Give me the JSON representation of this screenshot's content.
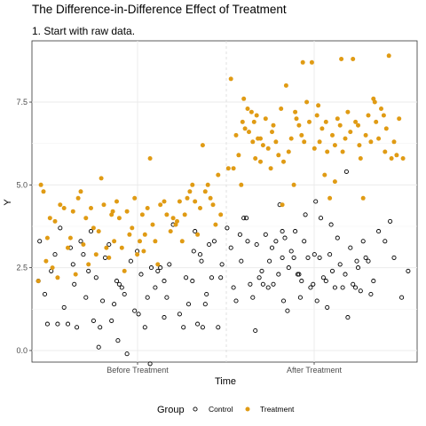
{
  "title": "The Difference-in-Difference Effect of Treatment",
  "subtitle": "1. Start with raw data.",
  "chart_data": {
    "type": "scatter",
    "xlabel": "Time",
    "ylabel": "Y",
    "x_categories": [
      "Before Treatment",
      "After Treatment"
    ],
    "y_ticks": [
      0.0,
      2.5,
      5.0,
      7.5
    ],
    "y_tick_labels": [
      "0.0",
      "2.5",
      "5.0",
      "7.5"
    ],
    "ylim": [
      -0.35,
      9.35
    ],
    "grid": true,
    "legend": {
      "title": "Group",
      "position": "bottom"
    },
    "series": [
      {
        "name": "Control",
        "color": "#000000",
        "marker": "hollow-circle",
        "points": [
          [
            0.05,
            2.1
          ],
          [
            0.1,
            1.7
          ],
          [
            0.12,
            0.8
          ],
          [
            0.06,
            3.3
          ],
          [
            0.15,
            2.4
          ],
          [
            0.18,
            2.9
          ],
          [
            0.2,
            0.8
          ],
          [
            0.22,
            3.7
          ],
          [
            0.25,
            1.3
          ],
          [
            0.28,
            0.8
          ],
          [
            0.3,
            3.1
          ],
          [
            0.32,
            2.6
          ],
          [
            0.33,
            2.0
          ],
          [
            0.35,
            0.7
          ],
          [
            0.38,
            3.3
          ],
          [
            0.4,
            2.9
          ],
          [
            0.42,
            1.6
          ],
          [
            0.44,
            2.4
          ],
          [
            0.46,
            3.6
          ],
          [
            0.48,
            0.9
          ],
          [
            0.5,
            2.2
          ],
          [
            0.52,
            0.1
          ],
          [
            0.53,
            0.7
          ],
          [
            0.55,
            1.5
          ],
          [
            0.57,
            2.8
          ],
          [
            0.6,
            3.2
          ],
          [
            0.62,
            0.9
          ],
          [
            0.64,
            1.4
          ],
          [
            0.66,
            2.1
          ],
          [
            0.67,
            0.3
          ],
          [
            0.68,
            2.0
          ],
          [
            0.7,
            1.9
          ],
          [
            0.72,
            1.7
          ],
          [
            0.74,
            -0.1
          ],
          [
            0.77,
            2.7
          ],
          [
            0.8,
            1.2
          ],
          [
            0.82,
            3.0
          ],
          [
            0.83,
            1.1
          ],
          [
            0.85,
            2.3
          ],
          [
            0.88,
            0.7
          ],
          [
            0.9,
            1.6
          ],
          [
            0.92,
            -0.4
          ],
          [
            0.93,
            2.5
          ],
          [
            0.96,
            1.9
          ],
          [
            0.98,
            2.4
          ],
          [
            1.0,
            2.5
          ],
          [
            1.03,
            2.1
          ],
          [
            1.05,
            1.6
          ],
          [
            1.07,
            2.6
          ],
          [
            1.1,
            3.8
          ],
          [
            1.15,
            1.1
          ],
          [
            1.18,
            0.7
          ],
          [
            1.2,
            2.2
          ],
          [
            1.22,
            1.4
          ],
          [
            1.25,
            2.1
          ],
          [
            1.27,
            3.6
          ],
          [
            1.29,
            0.8
          ],
          [
            1.32,
            2.7
          ],
          [
            1.33,
            0.7
          ],
          [
            1.35,
            1.4
          ],
          [
            1.38,
            3.2
          ],
          [
            1.4,
            2.2
          ],
          [
            1.42,
            3.3
          ],
          [
            1.45,
            0.7
          ],
          [
            1.47,
            2.2
          ],
          [
            1.48,
            2.6
          ],
          [
            1.52,
            3.7
          ],
          [
            1.55,
            3.1
          ],
          [
            1.57,
            1.9
          ],
          [
            1.59,
            1.5
          ],
          [
            1.62,
            3.5
          ],
          [
            1.63,
            2.7
          ],
          [
            1.65,
            4.0
          ],
          [
            1.67,
            4.0
          ],
          [
            1.68,
            3.3
          ],
          [
            1.7,
            2.0
          ],
          [
            1.72,
            1.6
          ],
          [
            1.74,
            0.6
          ],
          [
            1.75,
            3.2
          ],
          [
            1.77,
            2.2
          ],
          [
            1.79,
            2.4
          ],
          [
            1.8,
            2.0
          ],
          [
            1.82,
            3.5
          ],
          [
            1.84,
            1.9
          ],
          [
            1.85,
            2.7
          ],
          [
            1.87,
            3.1
          ],
          [
            1.88,
            2.0
          ],
          [
            1.9,
            3.3
          ],
          [
            1.92,
            2.3
          ],
          [
            1.93,
            4.4
          ],
          [
            1.95,
            3.6
          ],
          [
            1.97,
            3.4
          ],
          [
            1.99,
            1.2
          ],
          [
            2.0,
            2.5
          ],
          [
            2.02,
            3.0
          ],
          [
            2.04,
            2.8
          ],
          [
            2.05,
            3.6
          ],
          [
            2.07,
            2.3
          ],
          [
            2.09,
            1.6
          ],
          [
            2.1,
            2.1
          ],
          [
            2.12,
            3.3
          ],
          [
            2.13,
            4.1
          ],
          [
            2.15,
            2.8
          ],
          [
            2.17,
            1.9
          ],
          [
            2.19,
            2.0
          ],
          [
            2.2,
            2.9
          ],
          [
            2.22,
            1.5
          ],
          [
            2.24,
            2.8
          ],
          [
            2.25,
            4.0
          ],
          [
            2.27,
            2.2
          ],
          [
            2.29,
            2.1
          ],
          [
            2.3,
            1.3
          ],
          [
            2.32,
            2.9
          ],
          [
            2.34,
            2.4
          ],
          [
            2.36,
            1.9
          ],
          [
            2.38,
            3.4
          ],
          [
            2.4,
            2.6
          ],
          [
            2.42,
            1.9
          ],
          [
            2.44,
            2.3
          ],
          [
            2.46,
            1.0
          ],
          [
            2.48,
            3.1
          ],
          [
            2.5,
            2.0
          ],
          [
            2.52,
            1.9
          ],
          [
            2.54,
            2.5
          ],
          [
            2.56,
            1.8
          ],
          [
            2.58,
            3.3
          ],
          [
            2.6,
            2.8
          ],
          [
            2.62,
            2.7
          ],
          [
            2.64,
            1.7
          ],
          [
            2.66,
            2.1
          ],
          [
            2.7,
            3.6
          ],
          [
            2.75,
            3.3
          ],
          [
            2.82,
            2.8
          ],
          [
            2.88,
            1.6
          ],
          [
            2.93,
            2.4
          ],
          [
            1.03,
            1.0
          ],
          [
            2.45,
            5.4
          ],
          [
            1.95,
            2.8
          ],
          [
            1.96,
            1.5
          ],
          [
            2.08,
            2.3
          ],
          [
            2.21,
            4.5
          ],
          [
            2.33,
            3.8
          ],
          [
            2.53,
            2.7
          ],
          [
            2.79,
            3.9
          ],
          [
            1.26,
            3.0
          ],
          [
            1.31,
            2.9
          ],
          [
            1.36,
            1.7
          ]
        ]
      },
      {
        "name": "Treatment",
        "color": "#e09b14",
        "marker": "filled-circle",
        "points": [
          [
            0.05,
            2.1
          ],
          [
            0.07,
            5.0
          ],
          [
            0.09,
            4.8
          ],
          [
            0.11,
            2.7
          ],
          [
            0.12,
            3.4
          ],
          [
            0.14,
            4.0
          ],
          [
            0.16,
            2.5
          ],
          [
            0.18,
            3.9
          ],
          [
            0.2,
            2.2
          ],
          [
            0.22,
            4.4
          ],
          [
            0.25,
            4.3
          ],
          [
            0.28,
            3.1
          ],
          [
            0.3,
            3.4
          ],
          [
            0.32,
            4.2
          ],
          [
            0.34,
            2.3
          ],
          [
            0.36,
            4.6
          ],
          [
            0.38,
            4.8
          ],
          [
            0.4,
            3.2
          ],
          [
            0.42,
            4.0
          ],
          [
            0.44,
            2.6
          ],
          [
            0.46,
            4.3
          ],
          [
            0.48,
            3.7
          ],
          [
            0.5,
            2.9
          ],
          [
            0.52,
            3.6
          ],
          [
            0.54,
            5.2
          ],
          [
            0.56,
            4.4
          ],
          [
            0.58,
            3.1
          ],
          [
            0.6,
            2.8
          ],
          [
            0.62,
            4.1
          ],
          [
            0.64,
            3.3
          ],
          [
            0.66,
            4.5
          ],
          [
            0.68,
            4.0
          ],
          [
            0.7,
            3.1
          ],
          [
            0.72,
            2.4
          ],
          [
            0.74,
            4.2
          ],
          [
            0.76,
            3.5
          ],
          [
            0.78,
            3.7
          ],
          [
            0.8,
            4.6
          ],
          [
            0.82,
            2.9
          ],
          [
            0.84,
            3.3
          ],
          [
            0.86,
            4.1
          ],
          [
            0.88,
            3.5
          ],
          [
            0.9,
            4.3
          ],
          [
            0.92,
            5.8
          ],
          [
            0.94,
            3.8
          ],
          [
            0.96,
            3.3
          ],
          [
            0.98,
            2.6
          ],
          [
            1.0,
            4.4
          ],
          [
            1.03,
            4.5
          ],
          [
            1.05,
            4.1
          ],
          [
            1.08,
            3.6
          ],
          [
            1.1,
            4.0
          ],
          [
            1.12,
            3.8
          ],
          [
            1.15,
            4.5
          ],
          [
            1.17,
            3.3
          ],
          [
            1.19,
            4.1
          ],
          [
            1.21,
            4.6
          ],
          [
            1.23,
            4.8
          ],
          [
            1.25,
            5.0
          ],
          [
            1.27,
            4.5
          ],
          [
            1.29,
            3.5
          ],
          [
            1.31,
            4.3
          ],
          [
            1.33,
            6.2
          ],
          [
            1.35,
            4.8
          ],
          [
            1.37,
            5.0
          ],
          [
            1.39,
            4.6
          ],
          [
            1.41,
            4.4
          ],
          [
            1.43,
            3.8
          ],
          [
            1.45,
            5.3
          ],
          [
            1.47,
            4.1
          ],
          [
            1.53,
            5.5
          ],
          [
            1.55,
            8.2
          ],
          [
            1.57,
            5.5
          ],
          [
            1.59,
            6.5
          ],
          [
            1.61,
            5.9
          ],
          [
            1.63,
            5.0
          ],
          [
            1.64,
            6.9
          ],
          [
            1.66,
            6.7
          ],
          [
            1.68,
            7.3
          ],
          [
            1.69,
            6.6
          ],
          [
            1.71,
            7.2
          ],
          [
            1.72,
            6.3
          ],
          [
            1.73,
            6.9
          ],
          [
            1.75,
            7.1
          ],
          [
            1.76,
            6.4
          ],
          [
            1.78,
            5.7
          ],
          [
            1.8,
            6.2
          ],
          [
            1.82,
            7.0
          ],
          [
            1.84,
            6.1
          ],
          [
            1.86,
            5.5
          ],
          [
            1.88,
            6.8
          ],
          [
            1.9,
            6.3
          ],
          [
            1.92,
            5.9
          ],
          [
            1.94,
            7.3
          ],
          [
            1.96,
            5.7
          ],
          [
            1.98,
            8.0
          ],
          [
            2.0,
            6.0
          ],
          [
            2.02,
            6.4
          ],
          [
            2.04,
            5.0
          ],
          [
            2.06,
            7.0
          ],
          [
            2.08,
            6.8
          ],
          [
            2.1,
            6.5
          ],
          [
            2.12,
            6.3
          ],
          [
            2.14,
            7.5
          ],
          [
            2.16,
            6.9
          ],
          [
            2.18,
            8.7
          ],
          [
            2.2,
            6.1
          ],
          [
            2.22,
            7.1
          ],
          [
            2.24,
            6.3
          ],
          [
            2.26,
            6.7
          ],
          [
            2.28,
            5.3
          ],
          [
            2.3,
            6.0
          ],
          [
            2.32,
            4.6
          ],
          [
            2.34,
            6.5
          ],
          [
            2.36,
            6.2
          ],
          [
            2.38,
            7.0
          ],
          [
            2.4,
            6.8
          ],
          [
            2.42,
            6.0
          ],
          [
            2.44,
            6.4
          ],
          [
            2.46,
            7.2
          ],
          [
            2.48,
            6.6
          ],
          [
            2.5,
            8.8
          ],
          [
            2.52,
            6.9
          ],
          [
            2.54,
            6.8
          ],
          [
            2.56,
            5.8
          ],
          [
            2.58,
            4.6
          ],
          [
            2.6,
            6.5
          ],
          [
            2.62,
            7.1
          ],
          [
            2.64,
            6.3
          ],
          [
            2.66,
            7.6
          ],
          [
            2.68,
            6.9
          ],
          [
            2.7,
            6.4
          ],
          [
            2.72,
            7.3
          ],
          [
            2.74,
            7.1
          ],
          [
            2.76,
            6.7
          ],
          [
            2.78,
            8.9
          ],
          [
            2.8,
            5.8
          ],
          [
            2.82,
            6.3
          ],
          [
            2.84,
            5.9
          ],
          [
            2.86,
            7.0
          ],
          [
            1.65,
            7.6
          ],
          [
            1.74,
            5.8
          ],
          [
            1.87,
            6.6
          ],
          [
            1.95,
            4.4
          ],
          [
            2.11,
            8.7
          ],
          [
            2.23,
            7.4
          ],
          [
            2.41,
            8.8
          ],
          [
            2.67,
            7.5
          ],
          [
            2.75,
            6.0
          ],
          [
            2.89,
            5.8
          ],
          [
            2.36,
            5.1
          ],
          [
            2.29,
            6.9
          ],
          [
            2.05,
            7.2
          ],
          [
            1.78,
            6.4
          ],
          [
            2.55,
            6.2
          ],
          [
            0.87,
            3.0
          ],
          [
            1.13,
            3.9
          ],
          [
            0.63,
            4.2
          ]
        ]
      }
    ]
  }
}
